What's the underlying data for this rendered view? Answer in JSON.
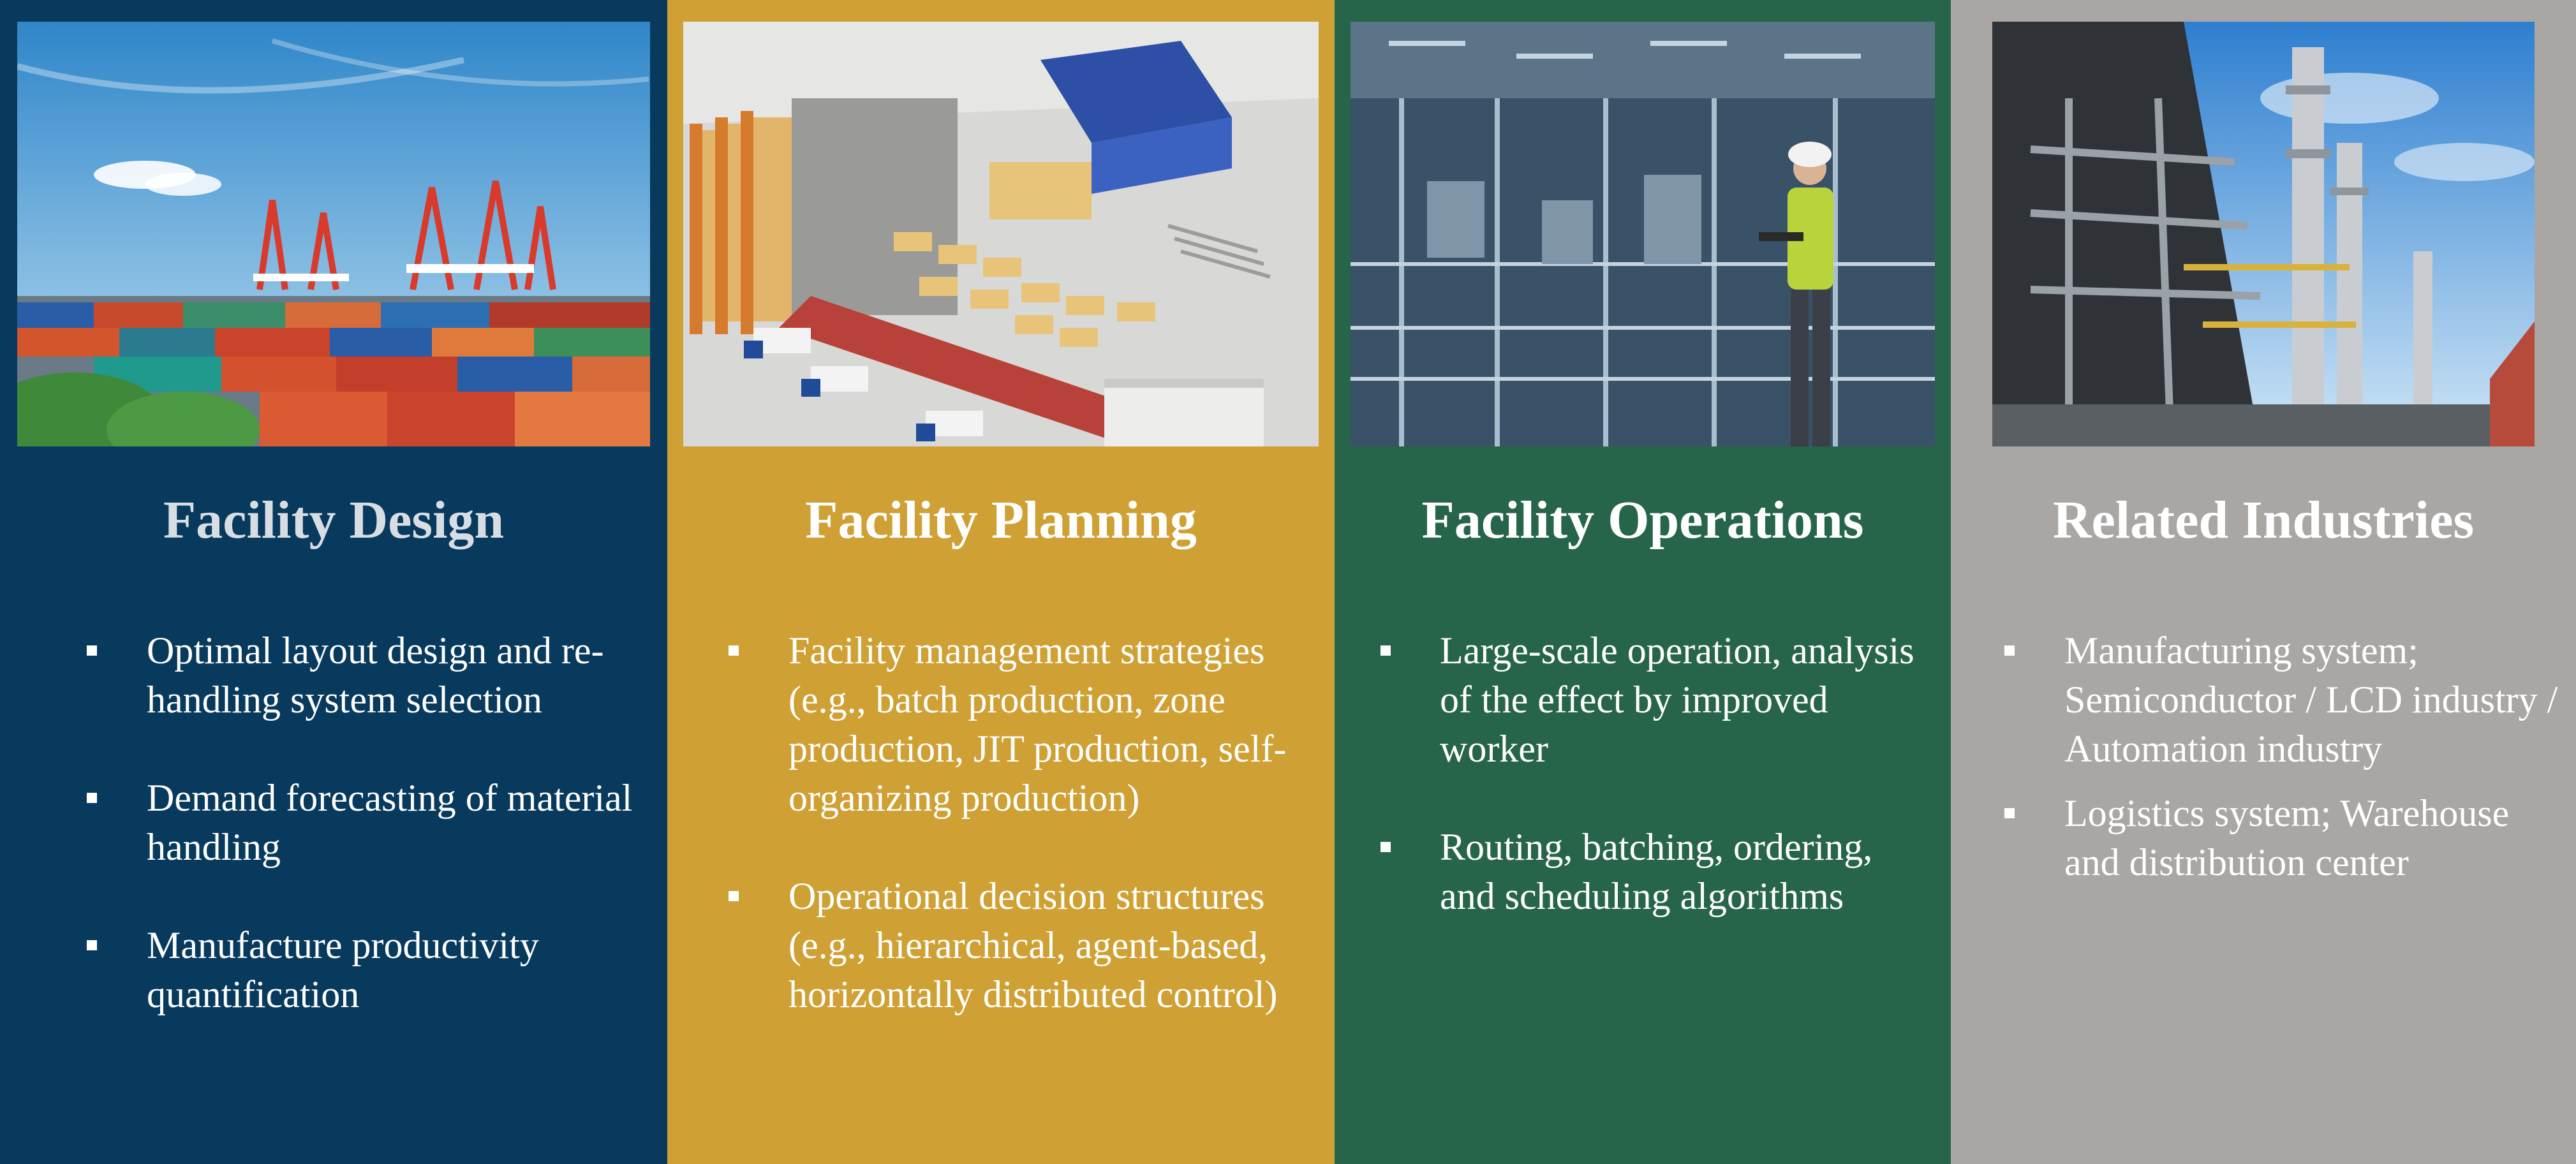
{
  "columns": [
    {
      "title": "Facility Design",
      "bullets": [
        "Optimal layout design  and re-handling system selection",
        "Demand forecasting of material handling",
        "Manufacture productivity quantification"
      ]
    },
    {
      "title": "Facility Planning",
      "bullets": [
        "Facility management strategies (e.g., batch production, zone production, JIT production, self-organizing production)",
        "Operational decision structures (e.g., hierarchical, agent-based, horizontally distributed control)"
      ]
    },
    {
      "title": "Facility Operations",
      "bullets": [
        "Large-scale operation, analysis of the effect by improved worker",
        "Routing, batching, ordering, and scheduling algorithms"
      ]
    },
    {
      "title": "Related Industries",
      "bullets": [
        "Manufacturing system; Semiconductor / LCD industry / Automation industry",
        "Logistics system; Warehouse and distribution center"
      ]
    }
  ],
  "colors": {
    "design": "#083a5e",
    "planning": "#cfa033",
    "operations": "#27654a",
    "industries": "#a9a6a4"
  }
}
